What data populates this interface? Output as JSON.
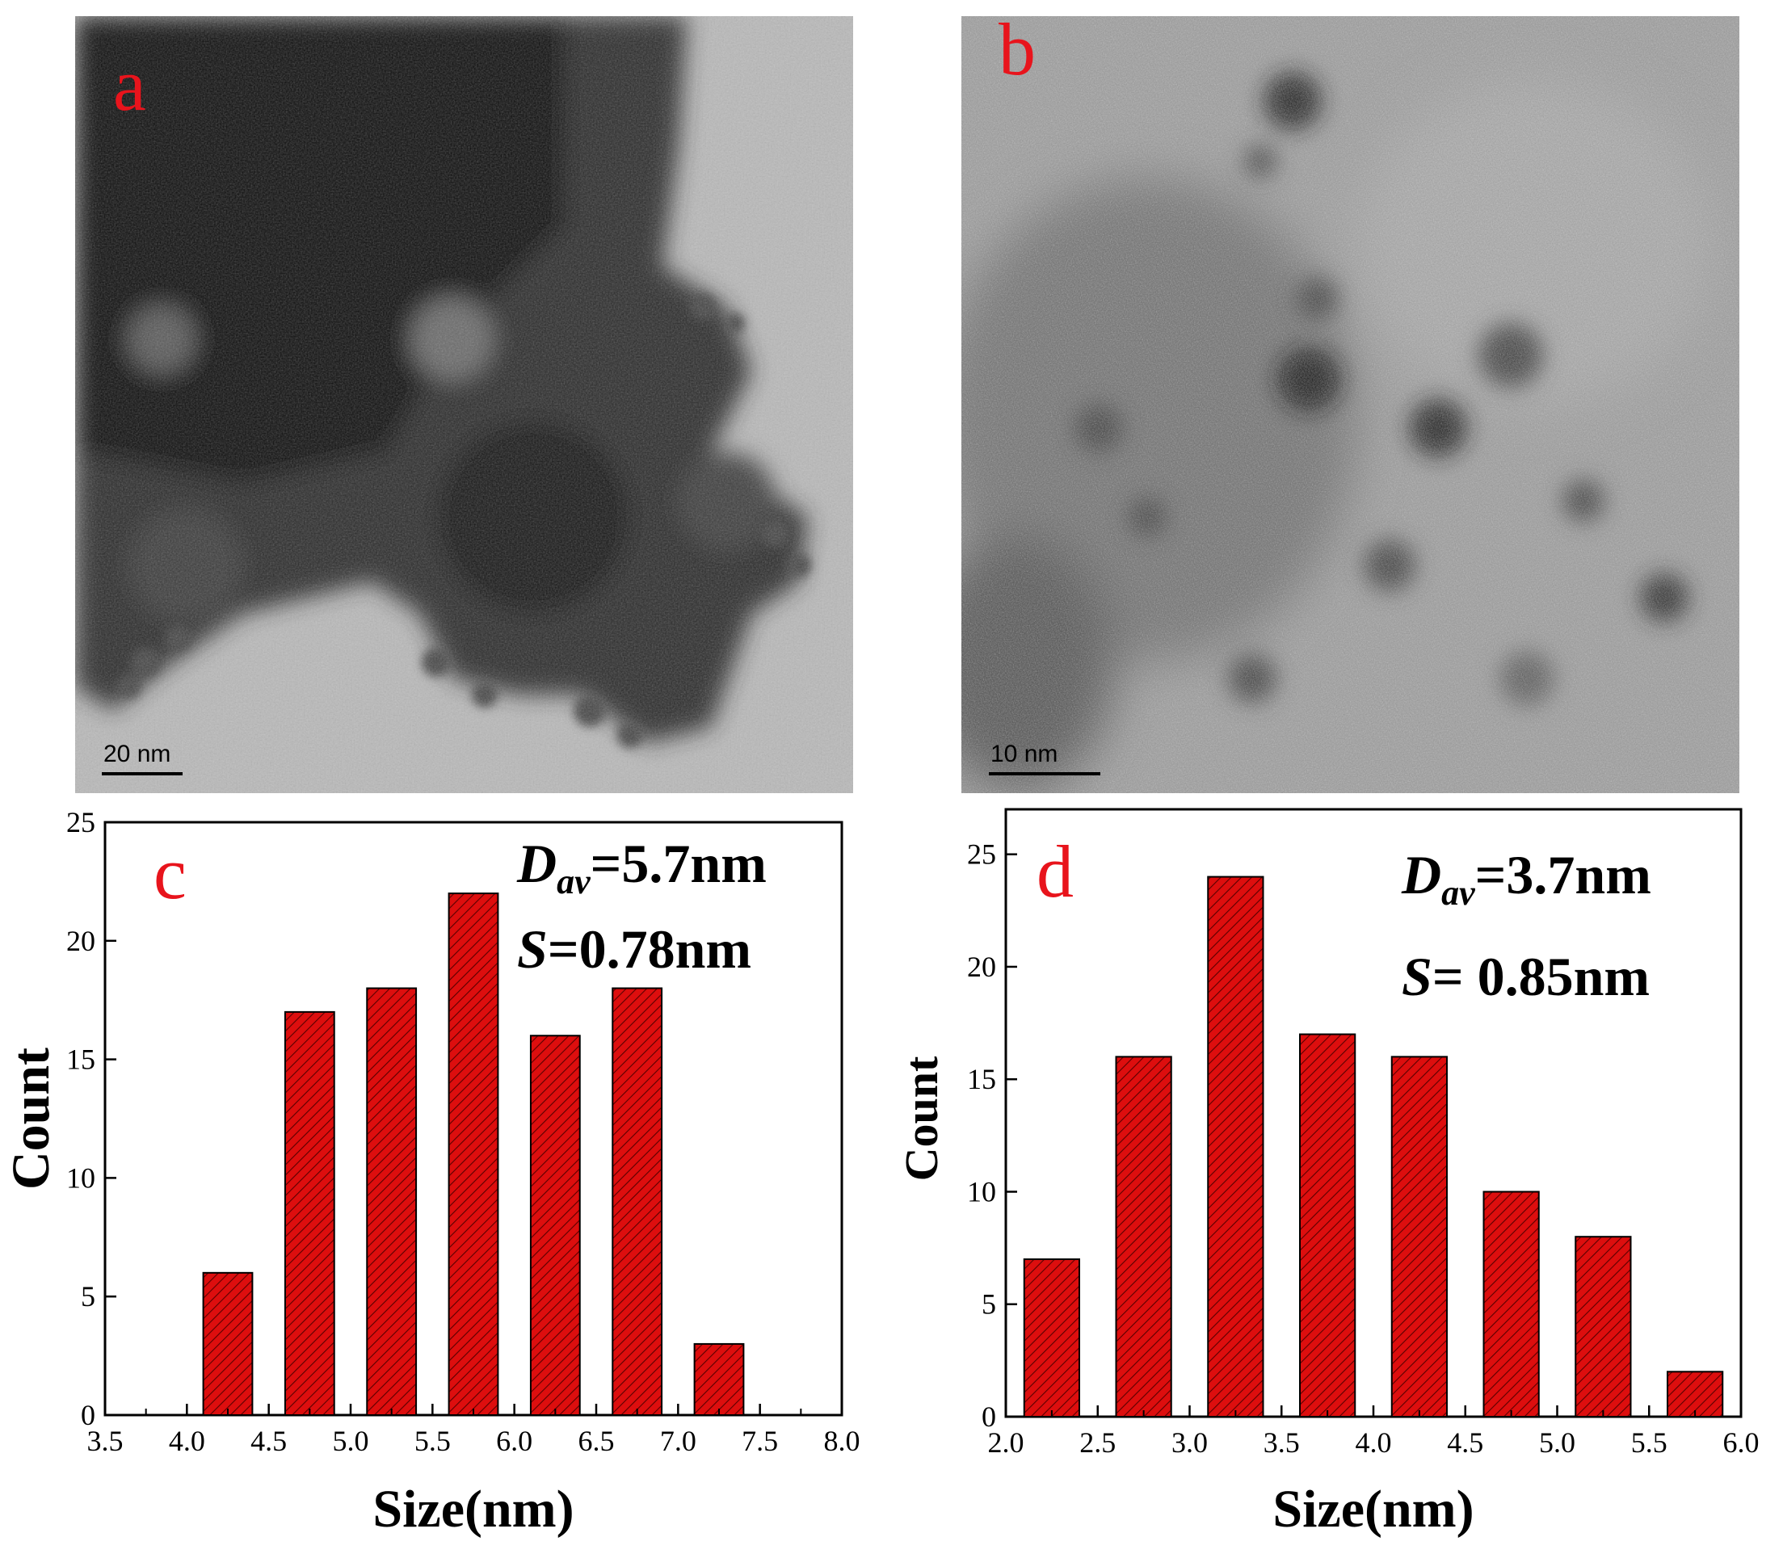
{
  "panels": {
    "a": {
      "label": "a",
      "scale_bar": "20 nm"
    },
    "b": {
      "label": "b",
      "scale_bar": "10 nm"
    },
    "c": {
      "label": "c"
    },
    "d": {
      "label": "d"
    }
  },
  "colors": {
    "label_red": "#e8141c",
    "bar_fill": "#dd0e0e",
    "bar_hatch": "#5a0000",
    "axis": "#000000"
  },
  "chart_data": [
    {
      "id": "c",
      "type": "bar",
      "xlabel": "Size(nm)",
      "ylabel": "Count",
      "xlim": [
        3.5,
        8.0
      ],
      "ylim": [
        0,
        25
      ],
      "xticks": [
        "3.5",
        "4.0",
        "4.5",
        "5.0",
        "5.5",
        "6.0",
        "6.5",
        "7.0",
        "7.5",
        "8.0"
      ],
      "yticks": [
        "0",
        "5",
        "10",
        "15",
        "20",
        "25"
      ],
      "bar_width": 0.3,
      "x": [
        4.25,
        4.75,
        5.25,
        5.75,
        6.25,
        6.75,
        7.25
      ],
      "values": [
        6,
        17,
        18,
        22,
        16,
        18,
        3
      ],
      "annotation_d_symbol": "D",
      "annotation_d_sub": "av",
      "annotation_d_value": "=5.7nm",
      "annotation_s_symbol": "S",
      "annotation_s_value": "=0.78nm"
    },
    {
      "id": "d",
      "type": "bar",
      "xlabel": "Size(nm)",
      "ylabel": "Count",
      "xlim": [
        2.0,
        6.0
      ],
      "ylim": [
        0,
        27
      ],
      "xticks": [
        "2.0",
        "2.5",
        "3.0",
        "3.5",
        "4.0",
        "4.5",
        "5.0",
        "5.5",
        "6.0"
      ],
      "yticks": [
        "0",
        "5",
        "10",
        "15",
        "20",
        "25"
      ],
      "bar_width": 0.3,
      "x": [
        2.25,
        2.75,
        3.25,
        3.75,
        4.25,
        4.75,
        5.25,
        5.75
      ],
      "values": [
        7,
        16,
        24,
        17,
        16,
        10,
        8,
        2
      ],
      "annotation_d_symbol": "D",
      "annotation_d_sub": "av",
      "annotation_d_value": "=3.7nm",
      "annotation_s_symbol": "S",
      "annotation_s_value": "= 0.85nm"
    }
  ]
}
